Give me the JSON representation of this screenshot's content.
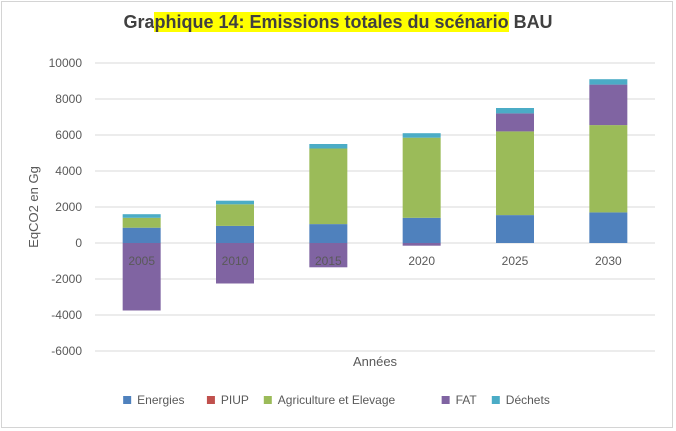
{
  "chart_data": {
    "type": "bar",
    "stacked": true,
    "title": {
      "pre": "Gra",
      "highlight": "phique 14: Emissions totales du scénario",
      "post": " BAU"
    },
    "xlabel": "Années",
    "ylabel": "EqCO2 en Gg",
    "ylim": [
      -6000,
      10000
    ],
    "yticks": [
      10000,
      8000,
      6000,
      4000,
      2000,
      0,
      -2000,
      -4000,
      -6000
    ],
    "grid": true,
    "legend_position": "bottom",
    "categories": [
      "2005",
      "2010",
      "2015",
      "2020",
      "2025",
      "2030"
    ],
    "series": [
      {
        "name": "Energies",
        "color": "#4f81bd",
        "values": [
          850,
          950,
          1050,
          1400,
          1550,
          1700
        ]
      },
      {
        "name": "PIUP",
        "color": "#c0504d",
        "values": [
          0,
          0,
          0,
          0,
          0,
          0
        ]
      },
      {
        "name": "Agriculture et Elevage",
        "color": "#9bbb59",
        "values": [
          550,
          1200,
          4200,
          4450,
          4650,
          4850
        ]
      },
      {
        "name": "FAT",
        "color": "#8064a2",
        "values": [
          -3750,
          -2250,
          -1350,
          -150,
          1000,
          2250
        ]
      },
      {
        "name": "Déchets",
        "color": "#4bacc6",
        "values": [
          200,
          200,
          250,
          250,
          300,
          300
        ]
      }
    ]
  }
}
